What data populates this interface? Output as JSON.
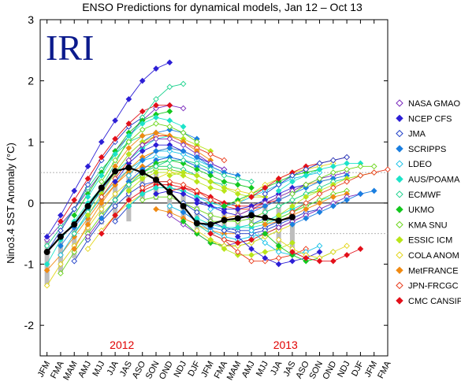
{
  "chart_data": {
    "type": "line",
    "title": "ENSO Predictions for dynamical models, Jan 12 – Oct 13",
    "ylabel": "Nino3.4 SST Anomaly (°C)",
    "xlabel": "",
    "logo_text": "IRI",
    "year_labels": [
      {
        "label": "2012",
        "at_index": 5.5
      },
      {
        "label": "2013",
        "at_index": 17.5
      }
    ],
    "categories": [
      "JFM",
      "FMA",
      "MAM",
      "AMJ",
      "MJJ",
      "JJA",
      "JAS",
      "ASO",
      "SON",
      "OND",
      "NDJ",
      "DJF",
      "JFM",
      "FMA",
      "MAM",
      "AMJ",
      "MJJ",
      "JJA",
      "JAS",
      "ASO",
      "SON",
      "OND",
      "NDJ",
      "DJF",
      "JFM",
      "FMA"
    ],
    "ylim": [
      -2.5,
      3.0
    ],
    "yticks": [
      -2,
      -1,
      0,
      1,
      2,
      3
    ],
    "reference_lines": [
      0.5,
      -0.5
    ],
    "grid": false,
    "legend_position": "right",
    "observed": {
      "start_index": 0,
      "values": [
        -0.8,
        -0.55,
        -0.35,
        -0.05,
        0.25,
        0.52,
        0.58,
        0.5,
        0.38,
        0.18,
        -0.05,
        -0.33,
        -0.35,
        -0.28,
        -0.25,
        -0.2,
        -0.24,
        -0.29,
        -0.23
      ],
      "color": "#000000"
    },
    "series": [
      {
        "name": "NASA GMAO",
        "marker": "diamond-open",
        "color": "#7b2bbd"
      },
      {
        "name": "NCEP CFS",
        "marker": "diamond-filled",
        "color": "#2d1fd6"
      },
      {
        "name": "JMA",
        "marker": "diamond-open",
        "color": "#1f3fc8"
      },
      {
        "name": "SCRIPPS",
        "marker": "diamond-filled",
        "color": "#1b7fe0"
      },
      {
        "name": "LDEO",
        "marker": "diamond-open",
        "color": "#17c2e8"
      },
      {
        "name": "AUS/POAMA",
        "marker": "diamond-filled",
        "color": "#1de3c9"
      },
      {
        "name": "ECMWF",
        "marker": "diamond-open",
        "color": "#1bd28d"
      },
      {
        "name": "UKMO",
        "marker": "diamond-filled",
        "color": "#14c81f"
      },
      {
        "name": "KMA SNU",
        "marker": "diamond-open",
        "color": "#6bd61a"
      },
      {
        "name": "ESSIC ICM",
        "marker": "diamond-filled",
        "color": "#b9e51a"
      },
      {
        "name": "COLA ANOM",
        "marker": "diamond-open",
        "color": "#e3d61b"
      },
      {
        "name": "MetFRANCE",
        "marker": "diamond-filled",
        "color": "#f08a12"
      },
      {
        "name": "JPN-FRCGC",
        "marker": "diamond-open",
        "color": "#e83a1a"
      },
      {
        "name": "CMC CANSIP",
        "marker": "diamond-filled",
        "color": "#e3101a"
      }
    ],
    "forecast_clusters": [
      {
        "start": 0,
        "values": [
          [
            -0.6,
            -0.35,
            -0.1,
            0.2,
            0.5,
            0.85,
            1.1,
            1.35,
            1.55,
            1.6,
            1.55
          ],
          [
            -1.0,
            -0.6,
            -0.3,
            0.0,
            0.25,
            0.5,
            0.7,
            0.9,
            1.05,
            1.1,
            1.05
          ],
          [
            -1.35,
            -1.0,
            -0.7,
            -0.4,
            -0.1,
            0.15,
            0.35,
            0.5,
            0.6,
            0.6,
            0.55
          ],
          [
            -0.55,
            -0.2,
            0.2,
            0.6,
            1.0,
            1.35,
            1.7,
            2.0,
            2.2,
            2.3
          ],
          [
            -0.7,
            -0.4,
            -0.1,
            0.25,
            0.55,
            0.8,
            1.0,
            1.1,
            1.15
          ],
          [
            -1.1,
            -0.85,
            -0.55,
            -0.25,
            0.05,
            0.3,
            0.5,
            0.6,
            0.6
          ],
          [
            -0.8,
            -0.45,
            -0.1,
            0.3,
            0.7,
            1.0,
            1.25,
            1.4
          ]
        ]
      },
      {
        "start": 1,
        "values": [
          [
            -0.7,
            -0.4,
            -0.1,
            0.2,
            0.5,
            0.8,
            1.0,
            1.15,
            1.2,
            1.15,
            1.05
          ],
          [
            -1.15,
            -0.8,
            -0.5,
            -0.2,
            0.05,
            0.3,
            0.45,
            0.55,
            0.55,
            0.5
          ],
          [
            -0.3,
            0.05,
            0.4,
            0.75,
            1.05,
            1.3,
            1.5,
            1.6,
            1.6
          ],
          [
            -0.85,
            -0.5,
            -0.2,
            0.1,
            0.35,
            0.55,
            0.7,
            0.75,
            0.75
          ]
        ]
      },
      {
        "start": 2,
        "values": [
          [
            -0.5,
            -0.15,
            0.25,
            0.65,
            1.05,
            1.4,
            1.7,
            1.9,
            1.95
          ],
          [
            -0.75,
            -0.35,
            0.0,
            0.3,
            0.55,
            0.75,
            0.85,
            0.9,
            0.85
          ],
          [
            -0.95,
            -0.6,
            -0.3,
            -0.05,
            0.15,
            0.3,
            0.35,
            0.35
          ],
          [
            -0.2,
            0.15,
            0.5,
            0.85,
            1.15,
            1.35,
            1.45,
            1.5
          ]
        ]
      },
      {
        "start": 3,
        "values": [
          [
            -0.2,
            0.15,
            0.5,
            0.8,
            1.0,
            1.1,
            1.1,
            1.05,
            0.95,
            0.85
          ],
          [
            -0.55,
            -0.25,
            0.05,
            0.35,
            0.55,
            0.7,
            0.75,
            0.7,
            0.6
          ],
          [
            0.1,
            0.45,
            0.8,
            1.1,
            1.3,
            1.4,
            1.35,
            1.25
          ],
          [
            -0.75,
            -0.45,
            -0.2,
            0.0,
            0.15,
            0.25,
            0.25,
            0.2
          ]
        ]
      },
      {
        "start": 4,
        "values": [
          [
            0.1,
            0.4,
            0.7,
            0.95,
            1.1,
            1.1,
            1.0,
            0.9,
            0.8,
            0.7
          ],
          [
            -0.25,
            0.05,
            0.35,
            0.55,
            0.7,
            0.75,
            0.7,
            0.6,
            0.5
          ],
          [
            0.35,
            0.7,
            1.0,
            1.2,
            1.3,
            1.25,
            1.15,
            1.0
          ],
          [
            -0.5,
            -0.2,
            0.05,
            0.2,
            0.3,
            0.3,
            0.25,
            0.15
          ]
        ]
      },
      {
        "start": 5,
        "values": [
          [
            0.35,
            0.65,
            0.85,
            0.95,
            0.95,
            0.85,
            0.75,
            0.65,
            0.55
          ],
          [
            0.05,
            0.3,
            0.5,
            0.6,
            0.6,
            0.55,
            0.45,
            0.35,
            0.3
          ],
          [
            0.6,
            0.9,
            1.1,
            1.15,
            1.1,
            1.0,
            0.85,
            0.7
          ],
          [
            -0.3,
            -0.05,
            0.15,
            0.25,
            0.25,
            0.2,
            0.1,
            0.05
          ]
        ]
      },
      {
        "start": 6,
        "values": [
          [
            0.45,
            0.7,
            0.85,
            0.85,
            0.8,
            0.7,
            0.6,
            0.5,
            0.45
          ],
          [
            0.2,
            0.4,
            0.5,
            0.5,
            0.45,
            0.35,
            0.25,
            0.2
          ],
          [
            0.7,
            0.95,
            1.05,
            1.05,
            0.95,
            0.8,
            0.65,
            0.55
          ],
          [
            -0.05,
            0.15,
            0.25,
            0.25,
            0.2,
            0.1,
            0.0,
            -0.05
          ]
        ]
      },
      {
        "start": 7,
        "values": [
          [
            0.5,
            0.65,
            0.7,
            0.65,
            0.55,
            0.45,
            0.35,
            0.3,
            0.25
          ],
          [
            0.25,
            0.35,
            0.35,
            0.3,
            0.2,
            0.1,
            0.0,
            -0.05
          ],
          [
            0.7,
            0.85,
            0.9,
            0.85,
            0.75,
            0.6,
            0.5,
            0.45
          ],
          [
            0.05,
            0.1,
            0.1,
            0.0,
            -0.1,
            -0.2,
            -0.25,
            -0.3
          ]
        ]
      },
      {
        "start": 8,
        "values": [
          [
            0.4,
            0.5,
            0.5,
            0.45,
            0.35,
            0.25,
            0.2,
            0.15,
            0.1
          ],
          [
            0.15,
            0.2,
            0.15,
            0.05,
            -0.05,
            -0.15,
            -0.2,
            -0.25
          ],
          [
            0.6,
            0.7,
            0.7,
            0.65,
            0.55,
            0.45,
            0.4,
            0.35
          ],
          [
            -0.1,
            -0.15,
            -0.25,
            -0.35,
            -0.45,
            -0.5,
            -0.5
          ]
        ]
      },
      {
        "start": 9,
        "values": [
          [
            0.2,
            0.25,
            0.2,
            0.1,
            0.0,
            -0.05,
            -0.05,
            0.0,
            0.05
          ],
          [
            -0.05,
            -0.15,
            -0.3,
            -0.45,
            -0.55,
            -0.6,
            -0.55,
            -0.5
          ],
          [
            0.45,
            0.5,
            0.45,
            0.35,
            0.25,
            0.15,
            0.1,
            0.1
          ],
          [
            -0.2,
            -0.35,
            -0.5,
            -0.65,
            -0.7,
            -0.65,
            -0.6
          ]
        ]
      },
      {
        "start": 10,
        "values": [
          [
            0.0,
            -0.15,
            -0.3,
            -0.4,
            -0.45,
            -0.45,
            -0.4,
            -0.3,
            -0.2
          ],
          [
            -0.3,
            -0.5,
            -0.65,
            -0.7,
            -0.7,
            -0.65,
            -0.55,
            -0.45
          ],
          [
            0.3,
            0.2,
            0.05,
            -0.05,
            -0.1,
            -0.1,
            -0.05,
            0.05,
            0.15
          ],
          [
            -0.15,
            -0.3,
            -0.4,
            -0.45,
            -0.4,
            -0.35,
            -0.25
          ]
        ]
      },
      {
        "start": 11,
        "values": [
          [
            -0.25,
            -0.35,
            -0.4,
            -0.4,
            -0.35,
            -0.3,
            -0.2,
            -0.1,
            0.0
          ],
          [
            -0.45,
            -0.6,
            -0.7,
            -0.7,
            -0.65,
            -0.55,
            -0.45,
            -0.35
          ],
          [
            0.0,
            -0.05,
            -0.1,
            -0.1,
            -0.05,
            0.05,
            0.15,
            0.25,
            0.3
          ],
          [
            -0.35,
            -0.5,
            -0.6,
            -0.65,
            -0.6,
            -0.5,
            -0.4
          ]
        ]
      },
      {
        "start": 12,
        "values": [
          [
            -0.3,
            -0.3,
            -0.3,
            -0.25,
            -0.15,
            -0.05,
            0.05,
            0.15,
            0.2
          ],
          [
            -0.5,
            -0.6,
            -0.65,
            -0.6,
            -0.5,
            -0.4,
            -0.3,
            -0.2
          ],
          [
            -0.1,
            -0.05,
            0.0,
            0.1,
            0.2,
            0.3,
            0.4,
            0.45,
            0.5
          ],
          [
            -0.6,
            -0.75,
            -0.85,
            -0.85,
            -0.8,
            -0.75,
            -0.65
          ]
        ]
      },
      {
        "start": 13,
        "values": [
          [
            -0.25,
            -0.2,
            -0.1,
            0.0,
            0.1,
            0.2,
            0.3,
            0.35,
            0.4
          ],
          [
            -0.45,
            -0.5,
            -0.5,
            -0.45,
            -0.35,
            -0.25,
            -0.15,
            -0.1
          ],
          [
            -0.05,
            0.05,
            0.15,
            0.25,
            0.35,
            0.45,
            0.5,
            0.55
          ],
          [
            -0.6,
            -0.8,
            -0.95,
            -0.95,
            -0.9,
            -0.85,
            -0.75
          ]
        ]
      },
      {
        "start": 14,
        "values": [
          [
            -0.2,
            -0.1,
            0.0,
            0.1,
            0.2,
            0.3,
            0.4,
            0.45,
            0.5
          ],
          [
            -0.4,
            -0.4,
            -0.35,
            -0.25,
            -0.15,
            -0.05,
            0.05,
            0.1
          ],
          [
            0.0,
            0.15,
            0.3,
            0.4,
            0.5,
            0.55,
            0.6,
            0.65
          ],
          [
            -0.55,
            -0.75,
            -0.9,
            -1.0,
            -0.95,
            -0.9,
            -0.8
          ]
        ]
      },
      {
        "start": 15,
        "values": [
          [
            -0.15,
            -0.05,
            0.05,
            0.15,
            0.25,
            0.35,
            0.4,
            0.45
          ],
          [
            -0.35,
            -0.3,
            -0.25,
            -0.15,
            -0.05,
            0.05,
            0.15,
            0.2
          ],
          [
            0.1,
            0.25,
            0.4,
            0.5,
            0.6,
            0.65,
            0.7,
            0.75
          ],
          [
            -0.45,
            -0.65,
            -0.8,
            -0.85,
            -0.8,
            -0.7
          ]
        ]
      },
      {
        "start": 16,
        "values": [
          [
            -0.15,
            -0.05,
            0.05,
            0.15,
            0.25,
            0.35,
            0.4,
            0.45
          ],
          [
            -0.35,
            -0.3,
            -0.2,
            -0.1,
            0.0,
            0.1,
            0.15
          ],
          [
            0.15,
            0.3,
            0.45,
            0.55,
            0.65,
            0.7,
            0.75
          ],
          [
            -0.5,
            -0.7,
            -0.85,
            -0.95,
            -0.9,
            -0.8
          ]
        ]
      },
      {
        "start": 17,
        "values": [
          [
            -0.2,
            -0.05,
            0.1,
            0.2,
            0.3,
            0.4,
            0.45,
            0.5
          ],
          [
            -0.4,
            -0.3,
            -0.2,
            -0.1,
            0.0,
            0.1,
            0.15
          ],
          [
            0.2,
            0.35,
            0.45,
            0.55,
            0.6,
            0.65,
            0.65
          ],
          [
            -0.6,
            -0.75,
            -0.85,
            -0.9,
            -0.8,
            -0.7
          ]
        ]
      },
      {
        "start": 18,
        "values": [
          [
            -0.15,
            0.0,
            0.15,
            0.25,
            0.35,
            0.45,
            0.5,
            0.55
          ],
          [
            -0.35,
            -0.25,
            -0.15,
            -0.05,
            0.05,
            0.15,
            0.2
          ],
          [
            0.15,
            0.3,
            0.4,
            0.5,
            0.55,
            0.6,
            0.6
          ],
          [
            -0.8,
            -0.9,
            -0.95,
            -0.95,
            -0.85,
            -0.75
          ]
        ]
      }
    ],
    "spread_bars": [
      {
        "index": 0,
        "low": -1.35,
        "high": -0.6
      },
      {
        "index": 1,
        "low": -1.15,
        "high": -0.55
      },
      {
        "index": 2,
        "low": -0.9,
        "high": -0.35
      },
      {
        "index": 3,
        "low": -0.6,
        "high": -0.1
      },
      {
        "index": 4,
        "low": -0.35,
        "high": 0.2
      },
      {
        "index": 5,
        "low": -0.3,
        "high": 0.55
      },
      {
        "index": 6,
        "low": -0.3,
        "high": 0.6
      },
      {
        "index": 7,
        "low": 0.05,
        "high": 0.6
      },
      {
        "index": 8,
        "low": 0.05,
        "high": 0.5
      },
      {
        "index": 9,
        "low": -0.2,
        "high": 0.35
      },
      {
        "index": 10,
        "low": -0.3,
        "high": 0.15
      },
      {
        "index": 11,
        "low": -0.45,
        "high": -0.05
      },
      {
        "index": 12,
        "low": -0.5,
        "high": -0.15
      },
      {
        "index": 13,
        "low": -0.55,
        "high": -0.05
      },
      {
        "index": 14,
        "low": -0.5,
        "high": -0.05
      },
      {
        "index": 15,
        "low": -0.55,
        "high": 0.0
      },
      {
        "index": 16,
        "low": -0.55,
        "high": 0.0
      },
      {
        "index": 17,
        "low": -0.8,
        "high": -0.05
      },
      {
        "index": 18,
        "low": -0.85,
        "high": -0.05
      }
    ]
  },
  "colors": {
    "title": "#000000",
    "logo": "#0b1a8c",
    "year_label": "#e00000",
    "spread_bar": "#bdbdbd",
    "reference_line": "#9a9a9a"
  }
}
